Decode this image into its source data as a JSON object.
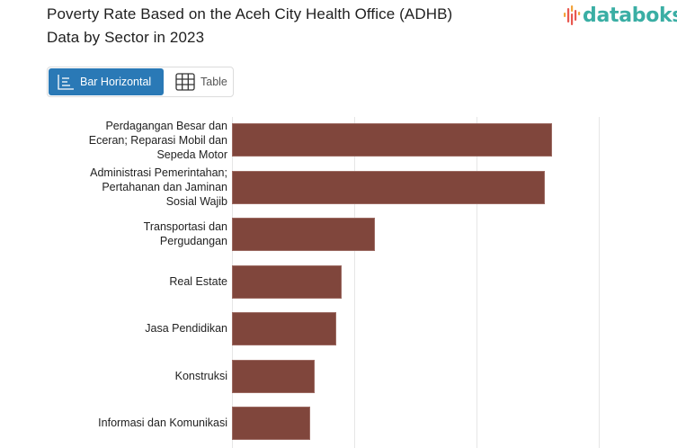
{
  "header": {
    "title_line1": "Poverty Rate Based on the Aceh City Health Office (ADHB)",
    "title_line2": "Data by Sector in 2023",
    "logo_text": "databoks",
    "logo_colors": {
      "text": "#3aaea4",
      "mark_red": "#e8584f",
      "mark_orange": "#f2a33a"
    }
  },
  "view_toggle": {
    "bar_label": "Bar Horizontal",
    "bar_icon": "bar-horizontal-icon",
    "table_label": "Table",
    "table_icon": "table-grid-icon",
    "active": "Bar Horizontal",
    "active_color": "#2a79b6"
  },
  "chart_data": {
    "type": "bar",
    "orientation": "horizontal",
    "title": "Poverty Rate Based on the Aceh City Health Office (ADHB) Data by Sector in 2023",
    "categories": [
      "Perdagangan Besar dan Eceran; Reparasi Mobil dan Sepeda Motor",
      "Administrasi Pemerintahan; Pertahanan dan Jaminan Sosial Wajib",
      "Transportasi dan Pergudangan",
      "Real Estate",
      "Jasa Pendidikan",
      "Konstruksi",
      "Informasi dan Komunikasi"
    ],
    "display_labels": [
      "Perdagangan Besar dan\nEceran; Reparasi Mobil dan\nSepeda Motor",
      "Administrasi Pemerintahan;\nPertahanan dan Jaminan\nSosial Wajib",
      "Transportasi dan\nPergudangan",
      "Real Estate",
      "Jasa Pendidikan",
      "Konstruksi",
      "Informasi dan Komunikasi"
    ],
    "values": [
      2.62,
      2.56,
      1.17,
      0.9,
      0.85,
      0.68,
      0.64
    ],
    "value_unit_note": "estimated in gridline-step units (axis tick labels not visible)",
    "xlabel": "",
    "ylabel": "",
    "xlim": [
      0,
      3
    ],
    "gridlines": [
      0,
      1,
      2,
      3
    ],
    "grid": true,
    "legend": "none",
    "bar_color": "#80463c"
  }
}
